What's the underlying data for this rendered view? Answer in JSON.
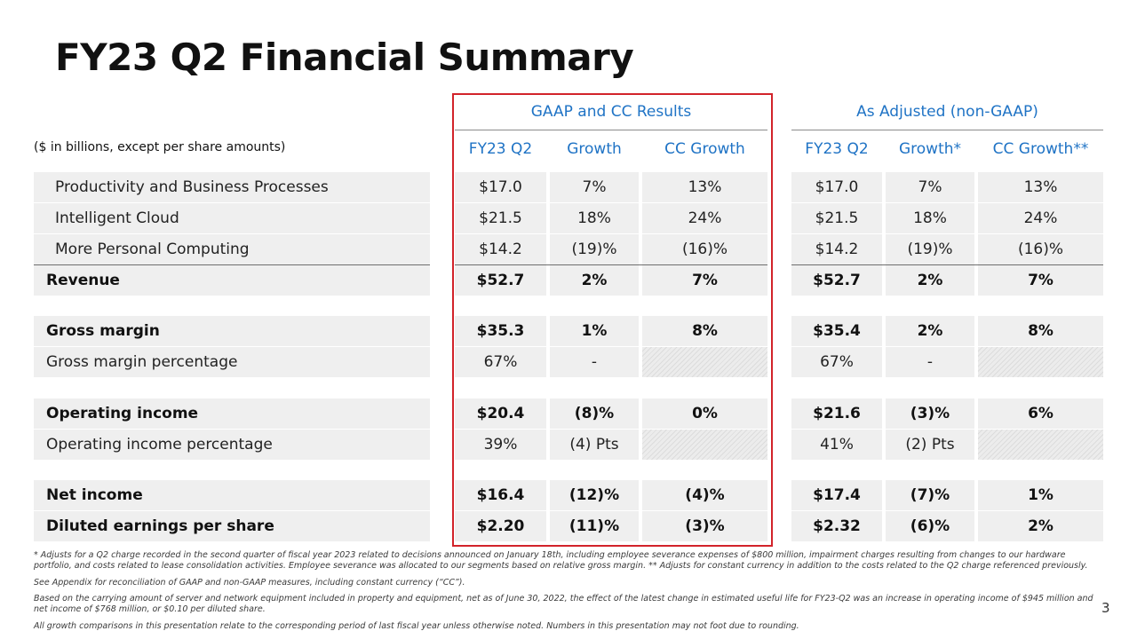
{
  "title": "FY23 Q2 Financial Summary",
  "units_note": "($ in billions, except per share amounts)",
  "groups": {
    "gaap": "GAAP and CC Results",
    "adjusted": "As Adjusted (non-GAAP)"
  },
  "columns": [
    "FY23 Q2",
    "Growth",
    "CC Growth",
    "FY23 Q2",
    "Growth*",
    "CC Growth**"
  ],
  "rows": [
    {
      "label": "Productivity and Business Processes",
      "values": [
        "$17.0",
        "7%",
        "13%",
        "$17.0",
        "7%",
        "13%"
      ]
    },
    {
      "label": "Intelligent Cloud",
      "values": [
        "$21.5",
        "18%",
        "24%",
        "$21.5",
        "18%",
        "24%"
      ]
    },
    {
      "label": "More Personal Computing",
      "values": [
        "$14.2",
        "(19)%",
        "(16)%",
        "$14.2",
        "(19)%",
        "(16)%"
      ]
    },
    {
      "label": "Revenue",
      "values": [
        "$52.7",
        "2%",
        "7%",
        "$52.7",
        "2%",
        "7%"
      ]
    },
    {
      "label": "Gross margin",
      "values": [
        "$35.3",
        "1%",
        "8%",
        "$35.4",
        "2%",
        "8%"
      ]
    },
    {
      "label": "Gross margin percentage",
      "values": [
        "67%",
        "-",
        "",
        "67%",
        "-",
        ""
      ]
    },
    {
      "label": "Operating income",
      "values": [
        "$20.4",
        "(8)%",
        "0%",
        "$21.6",
        "(3)%",
        "6%"
      ]
    },
    {
      "label": "Operating income percentage",
      "values": [
        "39%",
        "(4) Pts",
        "",
        "41%",
        "(2) Pts",
        ""
      ]
    },
    {
      "label": "Net income",
      "values": [
        "$16.4",
        "(12)%",
        "(4)%",
        "$17.4",
        "(7)%",
        "1%"
      ]
    },
    {
      "label": "Diluted earnings per share",
      "values": [
        "$2.20",
        "(11)%",
        "(3)%",
        "$2.32",
        "(6)%",
        "2%"
      ]
    }
  ],
  "footnotes": [
    "* Adjusts for a Q2 charge recorded in the second quarter of fiscal year 2023 related to decisions announced on January 18th, including employee severance expenses of $800 million, impairment charges resulting from changes to our hardware portfolio, and costs related to lease consolidation activities. Employee severance was allocated to our segments based on relative gross margin.  ** Adjusts for constant currency in addition to the costs related to the Q2 charge referenced previously.",
    "See Appendix for reconciliation of GAAP and non-GAAP measures, including constant currency (“CC”).",
    "Based on the carrying amount of server and network equipment included in property and equipment, net as of June 30, 2022, the effect of the latest change in estimated useful life for FY23-Q2 was an increase in operating income of $945 million and net income of $768 million, or $0.10 per diluted share.",
    "All growth comparisons in this presentation relate to the corresponding period of last fiscal year unless otherwise noted. Numbers in this presentation may not foot due to rounding."
  ],
  "page_number": "3"
}
